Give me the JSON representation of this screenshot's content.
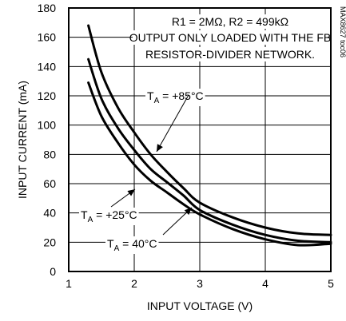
{
  "chart_data": {
    "type": "line",
    "xlabel": "INPUT VOLTAGE (V)",
    "ylabel": "INPUT CURRENT (mA)",
    "xlim": [
      1,
      5
    ],
    "ylim": [
      0,
      180
    ],
    "xticks": [
      1,
      2,
      3,
      4,
      5
    ],
    "yticks": [
      0,
      20,
      40,
      60,
      80,
      100,
      120,
      140,
      160,
      180
    ],
    "grid": true,
    "chart_id": "MAX8627 toc06",
    "notes": [
      "R1 = 2MΩ, R2 = 499kΩ",
      "OUTPUT ONLY LOADED WITH THE FB",
      "RESISTOR-DIVIDER NETWORK."
    ],
    "series": [
      {
        "name": "+85°C",
        "label_prefix": "T",
        "label_sub": "A",
        "label_suffix": " = +85°C",
        "x": [
          1.3,
          1.5,
          1.75,
          2.0,
          2.25,
          2.5,
          2.75,
          3.0,
          3.5,
          4.0,
          4.5,
          5.0
        ],
        "y": [
          168,
          136,
          112,
          95,
          80,
          68,
          57,
          47,
          37,
          30,
          26,
          25
        ]
      },
      {
        "name": "+25°C",
        "label_prefix": "T",
        "label_sub": "A",
        "label_suffix": " = +25°C",
        "x": [
          1.3,
          1.5,
          1.75,
          2.0,
          2.25,
          2.5,
          2.75,
          3.0,
          3.5,
          4.0,
          4.5,
          5.0
        ],
        "y": [
          145,
          118,
          98,
          83,
          70,
          61,
          52,
          42,
          32,
          25,
          21,
          20
        ]
      },
      {
        "name": "40°C",
        "label_prefix": "T",
        "label_sub": "A",
        "label_suffix": " = 40°C",
        "x": [
          1.3,
          1.5,
          1.75,
          2.0,
          2.25,
          2.5,
          2.75,
          3.0,
          3.5,
          4.0,
          4.5,
          5.0
        ],
        "y": [
          129,
          106,
          88,
          73,
          62,
          54,
          46,
          39,
          29,
          22,
          18,
          19
        ]
      }
    ]
  }
}
